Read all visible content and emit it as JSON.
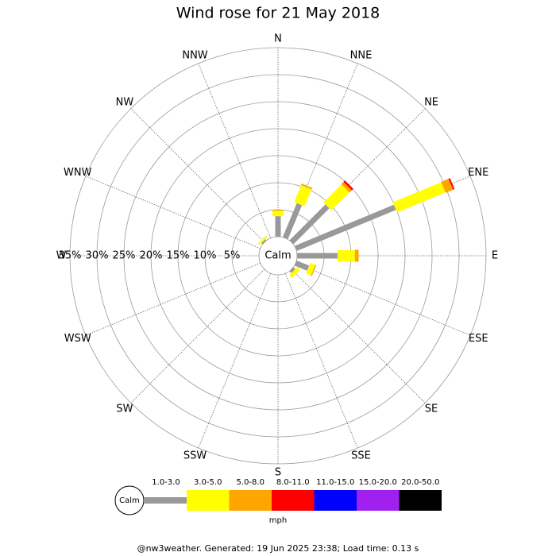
{
  "chart_data": {
    "type": "windrose",
    "title": "Wind rose for 21 May 2018",
    "directions": [
      "N",
      "NNE",
      "NE",
      "ENE",
      "E",
      "ESE",
      "SE",
      "SSE",
      "S",
      "SSW",
      "SW",
      "WSW",
      "W",
      "WNW",
      "NW",
      "NNW"
    ],
    "center_label": "Calm",
    "rlim": [
      0,
      35
    ],
    "rticks": [
      {
        "value": 5,
        "label": "5%"
      },
      {
        "value": 10,
        "label": "10%"
      },
      {
        "value": 15,
        "label": "15%"
      },
      {
        "value": 20,
        "label": "20%"
      },
      {
        "value": 25,
        "label": "25%"
      },
      {
        "value": 30,
        "label": "30%"
      },
      {
        "value": 35,
        "label": "35%"
      }
    ],
    "series": [
      {
        "name": "1.0-3.0",
        "color": "#999999",
        "values": [
          3.8,
          6.8,
          9.4,
          19.9,
          7.5,
          2.5,
          0.5,
          0,
          0,
          0,
          0,
          0,
          0,
          0,
          0.3,
          0
        ]
      },
      {
        "name": "3.0-5.0",
        "color": "#ffff00",
        "values": [
          1.0,
          3.4,
          4.7,
          9.7,
          3.2,
          1.0,
          0.7,
          0,
          0,
          0,
          0,
          0,
          0,
          0,
          0.4,
          0
        ]
      },
      {
        "name": "5.0-8.0",
        "color": "#ffa500",
        "values": [
          0.2,
          0.3,
          0.6,
          1.5,
          0.7,
          0.2,
          0,
          0,
          0,
          0,
          0,
          0,
          0,
          0,
          0,
          0
        ]
      },
      {
        "name": "8.0-11.0",
        "color": "#ff0000",
        "values": [
          0,
          0,
          0.4,
          0.3,
          0,
          0,
          0,
          0,
          0,
          0,
          0,
          0,
          0,
          0,
          0,
          0
        ]
      },
      {
        "name": "11.0-15.0",
        "color": "#0000ff",
        "values": [
          0,
          0,
          0,
          0,
          0,
          0,
          0,
          0,
          0,
          0,
          0,
          0,
          0,
          0,
          0,
          0
        ]
      },
      {
        "name": "15.0-20.0",
        "color": "#a020f0",
        "values": [
          0,
          0,
          0,
          0,
          0,
          0,
          0,
          0,
          0,
          0,
          0,
          0,
          0,
          0,
          0,
          0
        ]
      },
      {
        "name": "20.0-50.0",
        "color": "#000000",
        "values": [
          0,
          0,
          0,
          0,
          0,
          0,
          0,
          0,
          0,
          0,
          0,
          0,
          0,
          0,
          0,
          0
        ]
      }
    ],
    "legend_unit": "mph",
    "footer": "@nw3weather. Generated: 19 Jun 2025 23:38; Load time: 0.13 s"
  }
}
